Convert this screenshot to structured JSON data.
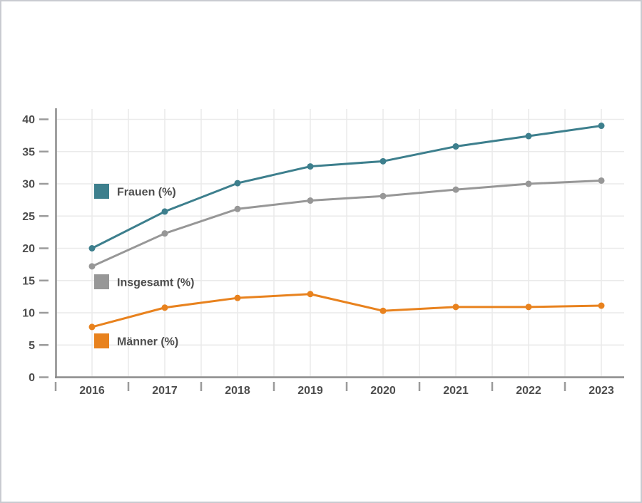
{
  "chart_data": {
    "type": "line",
    "title": "",
    "x": [
      2016,
      2017,
      2018,
      2019,
      2020,
      2021,
      2022,
      2023
    ],
    "series": [
      {
        "id": "frauen",
        "name": "Frauen (%)",
        "color": "#3d7f8d",
        "values": [
          20.0,
          25.7,
          30.1,
          32.7,
          33.5,
          35.8,
          37.4,
          39.0
        ]
      },
      {
        "id": "insgesamt",
        "name": "Insgesamt (%)",
        "color": "#979797",
        "values": [
          17.2,
          22.3,
          26.1,
          27.4,
          28.1,
          29.1,
          30.0,
          30.5
        ]
      },
      {
        "id": "maenner",
        "name": "Männer (%)",
        "color": "#e8821e",
        "values": [
          7.8,
          10.8,
          12.3,
          12.9,
          10.3,
          10.9,
          10.9,
          11.1
        ]
      }
    ],
    "xlabel": "",
    "ylabel": "",
    "ylim": [
      0,
      40
    ],
    "ytick_step": 5,
    "grid": true,
    "legend_position": "inside-left"
  },
  "y_axis": {
    "tick_labels": [
      "0",
      "5",
      "10",
      "15",
      "20",
      "25",
      "30",
      "35",
      "40"
    ]
  },
  "x_axis": {
    "tick_labels": [
      "2016",
      "2017",
      "2018",
      "2019",
      "2020",
      "2021",
      "2022",
      "2023"
    ]
  },
  "colors": {
    "background": "#ffffff",
    "page_border": "#c9cbd1",
    "axis": "#8c8c8c",
    "tick": "#9b9b9b",
    "grid": "#eaeaea",
    "label_text": "#4d4d4d"
  }
}
